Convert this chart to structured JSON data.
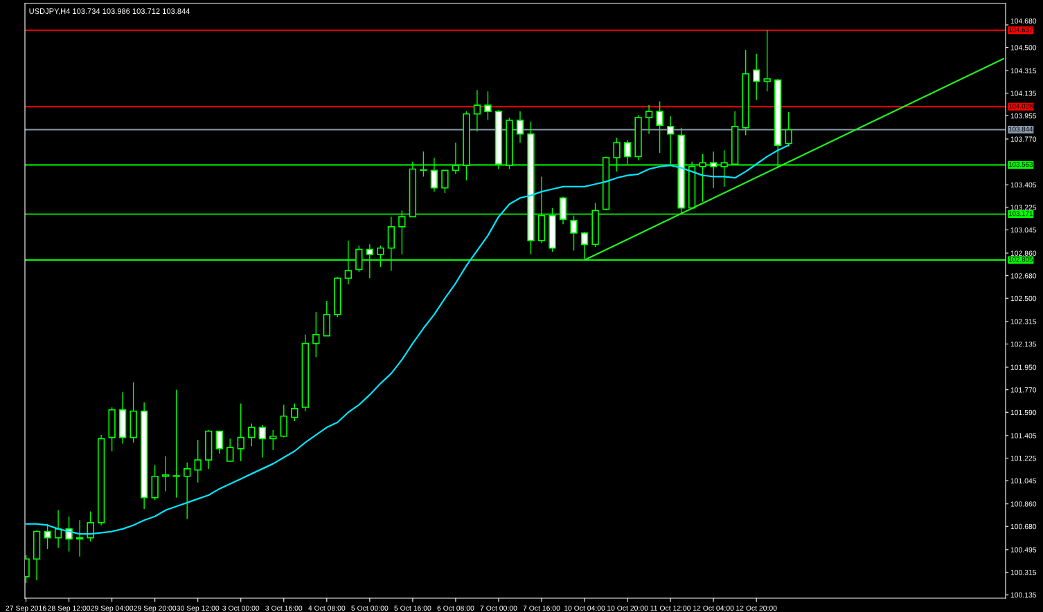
{
  "chart_data": {
    "type": "candlestick",
    "title": "USDJPY,H4 103.734 103.986 103.712 103.844",
    "categories": [
      "27 Sep 2016",
      null,
      null,
      null,
      "28 Sep 12:00",
      null,
      null,
      null,
      "29 Sep 04:00",
      null,
      null,
      null,
      "29 Sep 20:00",
      null,
      null,
      null,
      "30 Sep 12:00",
      null,
      null,
      null,
      "3 Oct 00:00",
      null,
      null,
      null,
      "3 Oct 16:00",
      null,
      null,
      null,
      "4 Oct 08:00",
      null,
      null,
      null,
      "5 Oct 00:00",
      null,
      null,
      null,
      "5 Oct 16:00",
      null,
      null,
      null,
      "6 Oct 08:00",
      null,
      null,
      null,
      "7 Oct 00:00",
      null,
      null,
      null,
      "7 Oct 16:00",
      null,
      null,
      null,
      "10 Oct 04:00",
      null,
      null,
      null,
      "10 Oct 20:00",
      null,
      null,
      null,
      "11 Oct 12:00",
      null,
      null,
      null,
      "12 Oct 04:00",
      null,
      null,
      null,
      "12 Oct 20:00",
      null,
      null,
      null,
      null,
      null,
      null,
      null,
      null,
      null,
      null,
      null,
      null,
      null,
      null,
      null,
      null,
      null,
      null,
      null,
      null,
      null,
      null,
      null
    ],
    "series": [
      {
        "type": "candlestick",
        "color": "#00ff00",
        "ohlc": [
          [
            100.28,
            100.45,
            100.23,
            100.42
          ],
          [
            100.42,
            100.65,
            100.25,
            100.64
          ],
          [
            100.64,
            100.7,
            100.5,
            100.59
          ],
          [
            100.59,
            100.81,
            100.51,
            100.66
          ],
          [
            100.66,
            100.76,
            100.48,
            100.58
          ],
          [
            100.59,
            100.73,
            100.44,
            100.58
          ],
          [
            100.59,
            100.8,
            100.56,
            100.71
          ],
          [
            100.71,
            101.41,
            100.69,
            101.38
          ],
          [
            101.39,
            101.63,
            101.28,
            101.61
          ],
          [
            101.61,
            101.75,
            101.34,
            101.39
          ],
          [
            101.39,
            101.83,
            101.35,
            101.6
          ],
          [
            101.6,
            101.67,
            100.82,
            100.91
          ],
          [
            100.91,
            101.17,
            100.89,
            101.08
          ],
          [
            101.08,
            101.24,
            100.96,
            101.09
          ],
          [
            101.08,
            101.77,
            100.91,
            101.08
          ],
          [
            101.08,
            101.19,
            100.74,
            101.14
          ],
          [
            101.13,
            101.37,
            101.03,
            101.21
          ],
          [
            101.21,
            101.45,
            101.14,
            101.44
          ],
          [
            101.44,
            101.44,
            101.26,
            101.3
          ],
          [
            101.2,
            101.38,
            101.2,
            101.31
          ],
          [
            101.3,
            101.66,
            101.2,
            101.39
          ],
          [
            101.39,
            101.5,
            101.32,
            101.47
          ],
          [
            101.47,
            101.49,
            101.23,
            101.38
          ],
          [
            101.38,
            101.45,
            101.29,
            101.4
          ],
          [
            101.4,
            101.65,
            101.39,
            101.56
          ],
          [
            101.55,
            101.66,
            101.52,
            101.62
          ],
          [
            101.63,
            102.21,
            101.6,
            102.14
          ],
          [
            102.14,
            102.39,
            102.03,
            102.21
          ],
          [
            102.2,
            102.48,
            102.2,
            102.37
          ],
          [
            102.37,
            102.67,
            102.35,
            102.66
          ],
          [
            102.66,
            102.96,
            102.61,
            102.72
          ],
          [
            102.73,
            102.92,
            102.71,
            102.89
          ],
          [
            102.89,
            102.93,
            102.66,
            102.85
          ],
          [
            102.85,
            102.92,
            102.75,
            102.9
          ],
          [
            102.9,
            103.15,
            102.72,
            103.07
          ],
          [
            103.07,
            103.2,
            102.85,
            103.15
          ],
          [
            103.15,
            103.59,
            103.15,
            103.53
          ],
          [
            103.52,
            103.67,
            103.47,
            103.52
          ],
          [
            103.52,
            103.62,
            103.35,
            103.38
          ],
          [
            103.38,
            103.52,
            103.34,
            103.52
          ],
          [
            103.52,
            103.74,
            103.49,
            103.56
          ],
          [
            103.56,
            103.99,
            103.44,
            103.97
          ],
          [
            103.97,
            104.16,
            103.83,
            104.04
          ],
          [
            104.04,
            104.15,
            103.92,
            103.99
          ],
          [
            103.99,
            104.0,
            103.53,
            103.57
          ],
          [
            103.56,
            103.94,
            103.53,
            103.92
          ],
          [
            103.92,
            103.99,
            103.74,
            103.81
          ],
          [
            103.81,
            103.91,
            102.85,
            102.96
          ],
          [
            102.96,
            103.47,
            102.94,
            103.16
          ],
          [
            103.16,
            103.22,
            102.87,
            102.9
          ],
          [
            103.3,
            103.31,
            103.09,
            103.13
          ],
          [
            103.12,
            103.16,
            102.88,
            103.02
          ],
          [
            103.02,
            103.03,
            102.8,
            102.93
          ],
          [
            102.93,
            103.26,
            102.91,
            103.2
          ],
          [
            103.21,
            103.63,
            103.2,
            103.62
          ],
          [
            103.62,
            103.78,
            103.51,
            103.74
          ],
          [
            103.74,
            103.76,
            103.57,
            103.63
          ],
          [
            103.63,
            103.96,
            103.6,
            103.94
          ],
          [
            103.94,
            104.04,
            103.81,
            103.99
          ],
          [
            103.99,
            104.07,
            103.66,
            103.88
          ],
          [
            103.87,
            103.95,
            103.56,
            103.81
          ],
          [
            103.8,
            103.86,
            103.17,
            103.22
          ],
          [
            103.22,
            103.59,
            103.21,
            103.55
          ],
          [
            103.55,
            103.65,
            103.27,
            103.58
          ],
          [
            103.58,
            103.67,
            103.38,
            103.55
          ],
          [
            103.55,
            103.68,
            103.39,
            103.58
          ],
          [
            103.57,
            103.99,
            103.56,
            103.87
          ],
          [
            103.86,
            104.48,
            103.8,
            104.29
          ],
          [
            104.32,
            104.45,
            104.08,
            104.23
          ],
          [
            104.23,
            104.64,
            104.15,
            104.25
          ],
          [
            104.24,
            104.25,
            103.54,
            103.72
          ],
          [
            103.734,
            103.986,
            103.712,
            103.844
          ],
          null,
          null,
          null,
          null,
          null,
          null,
          null,
          null,
          null,
          null,
          null,
          null,
          null,
          null,
          null,
          null,
          null,
          null,
          null,
          null
        ]
      },
      {
        "type": "line",
        "color": "#00e5ff",
        "values": [
          100.7,
          100.7,
          100.69,
          100.66,
          100.64,
          100.62,
          100.62,
          100.63,
          100.64,
          100.66,
          100.69,
          100.73,
          100.76,
          100.81,
          100.84,
          100.87,
          100.9,
          100.93,
          100.98,
          101.02,
          101.06,
          101.1,
          101.14,
          101.18,
          101.23,
          101.28,
          101.35,
          101.41,
          101.47,
          101.51,
          101.59,
          101.65,
          101.73,
          101.82,
          101.9,
          102.01,
          102.14,
          102.26,
          102.37,
          102.5,
          102.62,
          102.76,
          102.88,
          103.0,
          103.15,
          103.25,
          103.3,
          103.32,
          103.35,
          103.37,
          103.39,
          103.39,
          103.39,
          103.41,
          103.43,
          103.46,
          103.48,
          103.49,
          103.53,
          103.55,
          103.56,
          103.54,
          103.51,
          103.48,
          103.47,
          103.47,
          103.46,
          103.51,
          103.57,
          103.63,
          103.68,
          103.72,
          null,
          null,
          null,
          null,
          null,
          null,
          null,
          null,
          null,
          null,
          null,
          null,
          null,
          null,
          null,
          null,
          null,
          null,
          null,
          null
        ]
      },
      {
        "type": "line",
        "color": "#22ee22",
        "values": [
          null,
          null,
          null,
          null,
          null,
          null,
          null,
          null,
          null,
          null,
          null,
          null,
          null,
          null,
          null,
          null,
          null,
          null,
          null,
          null,
          null,
          null,
          null,
          null,
          null,
          null,
          null,
          null,
          null,
          null,
          null,
          null,
          null,
          null,
          null,
          null,
          null,
          null,
          null,
          null,
          null,
          null,
          null,
          null,
          null,
          null,
          null,
          null,
          null,
          null,
          null,
          null,
          102.805,
          null,
          null,
          null,
          null,
          null,
          null,
          null,
          null,
          null,
          null,
          null,
          null,
          null,
          null,
          null,
          null,
          null,
          null,
          null,
          null,
          null,
          null,
          null,
          null,
          null,
          null,
          null,
          null,
          null,
          null,
          null,
          null,
          null,
          null,
          null,
          null,
          null,
          null,
          104.41
        ]
      }
    ],
    "ylim": [
      100.108,
      104.851
    ],
    "yticks": [
      {
        "value": 104.68,
        "label": "104.680"
      },
      {
        "value": 104.5,
        "label": "104.500"
      },
      104.315,
      104.135,
      103.955,
      {
        "value": 103.77,
        "label": "103.770"
      },
      103.405,
      103.225,
      103.045,
      {
        "value": 102.86,
        "label": "102.860"
      },
      {
        "value": 102.68,
        "label": "102.680"
      },
      {
        "value": 102.5,
        "label": "102.500"
      },
      102.315,
      102.135,
      {
        "value": 101.95,
        "label": "101.950"
      },
      {
        "value": 101.77,
        "label": "101.770"
      },
      {
        "value": 101.59,
        "label": "101.590"
      },
      101.405,
      101.225,
      101.045,
      {
        "value": 100.86,
        "label": "100.860"
      },
      {
        "value": 100.68,
        "label": "100.680"
      },
      100.495,
      100.315,
      100.135
    ],
    "ref_lines": [
      {
        "axis": "y",
        "value": 104.637,
        "label": "104.637",
        "color": "#ff0000"
      },
      {
        "axis": "y",
        "value": 104.028,
        "label": "104.028",
        "color": "#ff0000"
      },
      {
        "axis": "y",
        "value": 103.844,
        "label": "103.844",
        "color": "#8899aa"
      },
      {
        "axis": "y",
        "value": 103.563,
        "label": "103.563",
        "color": "#00ff00"
      },
      {
        "axis": "y",
        "value": 103.171,
        "label": "103.171",
        "color": "#00ff00"
      },
      {
        "axis": "y",
        "value": 102.805,
        "label": "102.805",
        "color": "#00ff00"
      }
    ],
    "grid": false,
    "legend": false
  }
}
